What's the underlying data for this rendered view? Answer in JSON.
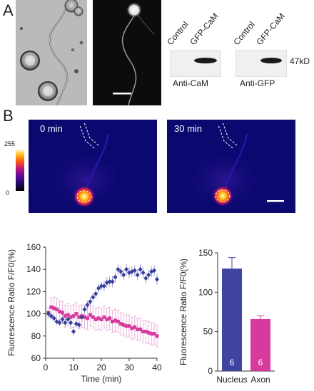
{
  "panelA": {
    "letter": "A",
    "blot1": {
      "lanes": [
        "Control",
        "GFP-CaM"
      ],
      "antibody": "Anti-CaM"
    },
    "blot2": {
      "lanes": [
        "Control",
        "GFP-CaM"
      ],
      "antibody": "Anti-GFP"
    },
    "mw": "47kD"
  },
  "panelB": {
    "letter": "B",
    "colorbar": {
      "max": "255",
      "min": "0"
    },
    "time_left": "0 min",
    "time_right": "30 min"
  },
  "chart_data": [
    {
      "type": "scatter",
      "xlabel": "Time (min)",
      "ylabel": "Fluorescence Ratio  F/F0(%)",
      "xlim": [
        0,
        40
      ],
      "ylim": [
        60,
        160
      ],
      "xticks": [
        0,
        10,
        20,
        30,
        40
      ],
      "yticks": [
        60,
        80,
        100,
        120,
        140,
        160
      ],
      "colors": {
        "nucleus": "#3a3f9e",
        "axon": "#d63a9c",
        "axon_err": "#e6a3d2"
      },
      "series": [
        {
          "marker": "diamond",
          "x": [
            1,
            2,
            3,
            4,
            5,
            6,
            7,
            8,
            9,
            10,
            11,
            12,
            13,
            14,
            15,
            16,
            17,
            18,
            19,
            20,
            21,
            22,
            23,
            24,
            25,
            26,
            27,
            28,
            29,
            30,
            31,
            32,
            33,
            34,
            35,
            36,
            37,
            38,
            39,
            40
          ],
          "y": [
            100,
            98,
            96,
            93,
            92,
            95,
            92,
            95,
            92,
            84,
            91,
            90,
            97,
            104,
            108,
            111,
            115,
            118,
            123,
            125,
            125,
            128,
            129,
            129,
            133,
            140,
            138,
            135,
            140,
            137,
            138,
            139,
            135,
            140,
            137,
            132,
            135,
            138,
            139,
            131
          ],
          "err": [
            3,
            3,
            3,
            3,
            3,
            3,
            4,
            4,
            4,
            4,
            4,
            4,
            4,
            4,
            4,
            4,
            4,
            4,
            4,
            4,
            5,
            5,
            5,
            5,
            5,
            5,
            5,
            5,
            5,
            5,
            5,
            5,
            5,
            5,
            5,
            5,
            5,
            5,
            5,
            5
          ]
        },
        {
          "marker": "square",
          "x": [
            1,
            2,
            3,
            4,
            5,
            6,
            7,
            8,
            9,
            10,
            11,
            12,
            13,
            14,
            15,
            16,
            17,
            18,
            19,
            20,
            21,
            22,
            23,
            24,
            25,
            26,
            27,
            28,
            29,
            30,
            31,
            32,
            33,
            34,
            35,
            36,
            37,
            38,
            39,
            40
          ],
          "y": [
            101,
            106,
            105,
            104,
            102,
            101,
            98,
            99,
            97,
            98,
            100,
            97,
            98,
            97,
            96,
            99,
            97,
            95,
            96,
            95,
            97,
            95,
            96,
            93,
            94,
            93,
            91,
            90,
            89,
            89,
            87,
            88,
            86,
            86,
            84,
            84,
            83,
            82,
            82,
            80
          ],
          "err": [
            4,
            8,
            10,
            10,
            10,
            10,
            10,
            10,
            10,
            10,
            10,
            10,
            10,
            10,
            10,
            10,
            10,
            10,
            10,
            10,
            10,
            10,
            10,
            10,
            10,
            10,
            10,
            10,
            10,
            10,
            10,
            10,
            10,
            10,
            10,
            10,
            10,
            10,
            10,
            10
          ]
        }
      ]
    },
    {
      "type": "bar",
      "categories": [
        "Nucleus",
        "Axon"
      ],
      "values": [
        130,
        66
      ],
      "errors": [
        14,
        4
      ],
      "n_labels": [
        "6",
        "6"
      ],
      "bar_colors": [
        "#3f43a2",
        "#d63a9c"
      ],
      "ylabel": "Fluorescence Ratio  F/F0(%)",
      "ylim": [
        0,
        150
      ],
      "yticks": [
        0,
        50,
        100,
        150
      ]
    }
  ]
}
